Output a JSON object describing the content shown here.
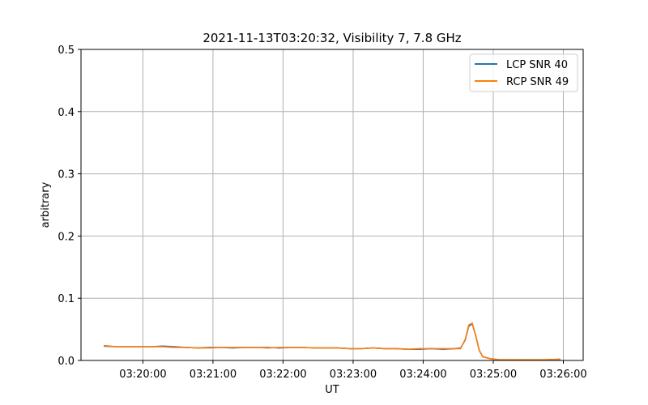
{
  "chart_data": {
    "type": "line",
    "title": "2021-11-13T03:20:32, Visibility 7, 7.8 GHz",
    "xlabel": "UT",
    "ylabel": "arbitrary",
    "xlim": [
      "03:19:07",
      "03:26:17"
    ],
    "ylim": [
      0,
      0.5
    ],
    "grid": true,
    "legend_placement": "top-right",
    "x_ticks": [
      "03:20:00",
      "03:21:00",
      "03:22:00",
      "03:23:00",
      "03:24:00",
      "03:25:00",
      "03:26:00"
    ],
    "y_ticks": [
      "0.0",
      "0.1",
      "0.2",
      "0.3",
      "0.4",
      "0.5"
    ],
    "x": [
      "03:19:27",
      "03:19:37",
      "03:19:47",
      "03:19:57",
      "03:20:07",
      "03:20:17",
      "03:20:27",
      "03:20:37",
      "03:20:47",
      "03:20:57",
      "03:21:07",
      "03:21:17",
      "03:21:27",
      "03:21:37",
      "03:21:47",
      "03:21:57",
      "03:22:07",
      "03:22:17",
      "03:22:27",
      "03:22:37",
      "03:22:47",
      "03:22:57",
      "03:23:07",
      "03:23:17",
      "03:23:27",
      "03:23:37",
      "03:23:47",
      "03:23:57",
      "03:24:07",
      "03:24:17",
      "03:24:27",
      "03:24:32",
      "03:24:36",
      "03:24:39",
      "03:24:42",
      "03:24:45",
      "03:24:48",
      "03:24:51",
      "03:24:57",
      "03:25:05",
      "03:25:15",
      "03:25:25",
      "03:25:35",
      "03:25:45",
      "03:25:57"
    ],
    "series": [
      {
        "name": "LCP SNR 40",
        "color": "#1f77b4",
        "values": [
          0.023,
          0.022,
          0.022,
          0.022,
          0.022,
          0.023,
          0.022,
          0.021,
          0.02,
          0.021,
          0.021,
          0.02,
          0.021,
          0.021,
          0.021,
          0.02,
          0.021,
          0.021,
          0.02,
          0.02,
          0.02,
          0.019,
          0.019,
          0.02,
          0.019,
          0.019,
          0.018,
          0.018,
          0.019,
          0.018,
          0.019,
          0.02,
          0.033,
          0.055,
          0.059,
          0.04,
          0.016,
          0.006,
          0.003,
          0.001,
          0.001,
          0.001,
          0.001,
          0.001,
          0.002
        ]
      },
      {
        "name": "RCP SNR 49",
        "color": "#ff7f0e",
        "values": [
          0.024,
          0.022,
          0.022,
          0.022,
          0.022,
          0.022,
          0.021,
          0.021,
          0.02,
          0.02,
          0.021,
          0.021,
          0.021,
          0.021,
          0.02,
          0.021,
          0.021,
          0.021,
          0.02,
          0.02,
          0.02,
          0.019,
          0.019,
          0.02,
          0.019,
          0.019,
          0.018,
          0.019,
          0.019,
          0.019,
          0.019,
          0.019,
          0.034,
          0.057,
          0.06,
          0.04,
          0.016,
          0.006,
          0.003,
          0.001,
          0.001,
          0.001,
          0.001,
          0.001,
          0.002
        ]
      }
    ]
  }
}
